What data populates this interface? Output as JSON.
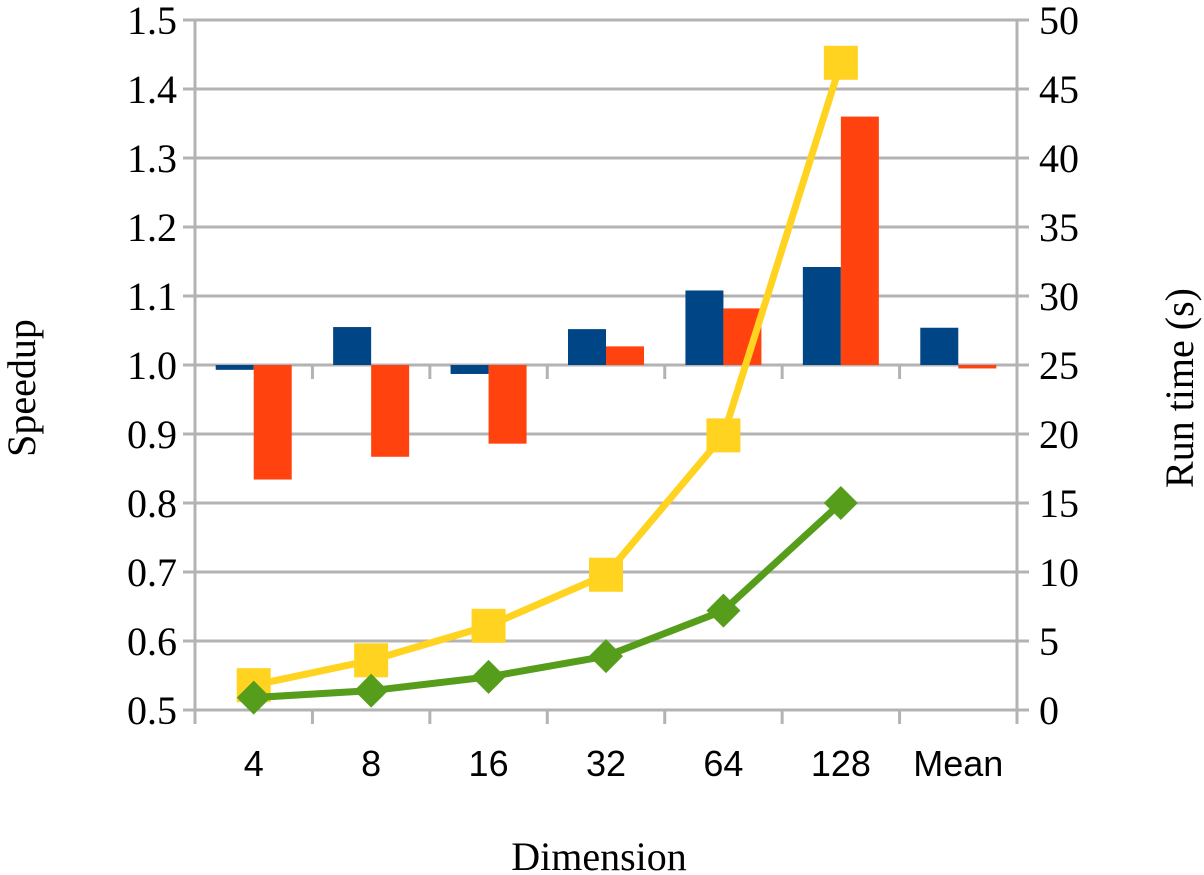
{
  "chart_data": {
    "type": "bar",
    "xlabel": "Dimension",
    "ylabel": "Speedup",
    "y2label": "Run time (s)",
    "categories": [
      "4",
      "8",
      "16",
      "32",
      "64",
      "128",
      "Mean"
    ],
    "ylim": [
      0.5,
      1.5
    ],
    "y_ticks": [
      "0.5",
      "0.6",
      "0.7",
      "0.8",
      "0.9",
      "1.0",
      "1.1",
      "1.2",
      "1.3",
      "1.4",
      "1.5"
    ],
    "y2lim": [
      0,
      50
    ],
    "y2_ticks": [
      "0",
      "5",
      "10",
      "15",
      "20",
      "25",
      "30",
      "35",
      "40",
      "45",
      "50"
    ],
    "grid": true,
    "legend": "none",
    "bar_series": [
      {
        "color": "#004586",
        "values": [
          0.993,
          1.055,
          0.987,
          1.052,
          1.108,
          1.142,
          1.054
        ]
      },
      {
        "color": "#ff420e",
        "values": [
          0.834,
          0.867,
          0.886,
          1.027,
          1.082,
          1.36,
          0.995
        ]
      }
    ],
    "line_series": [
      {
        "color": "#ffd320",
        "marker": "square",
        "values": [
          1.8,
          3.6,
          6.1,
          9.8,
          19.9,
          46.9
        ]
      },
      {
        "color": "#579d1c",
        "marker": "diamond",
        "values": [
          0.9,
          1.4,
          2.4,
          3.9,
          7.2,
          15.0
        ]
      }
    ]
  }
}
